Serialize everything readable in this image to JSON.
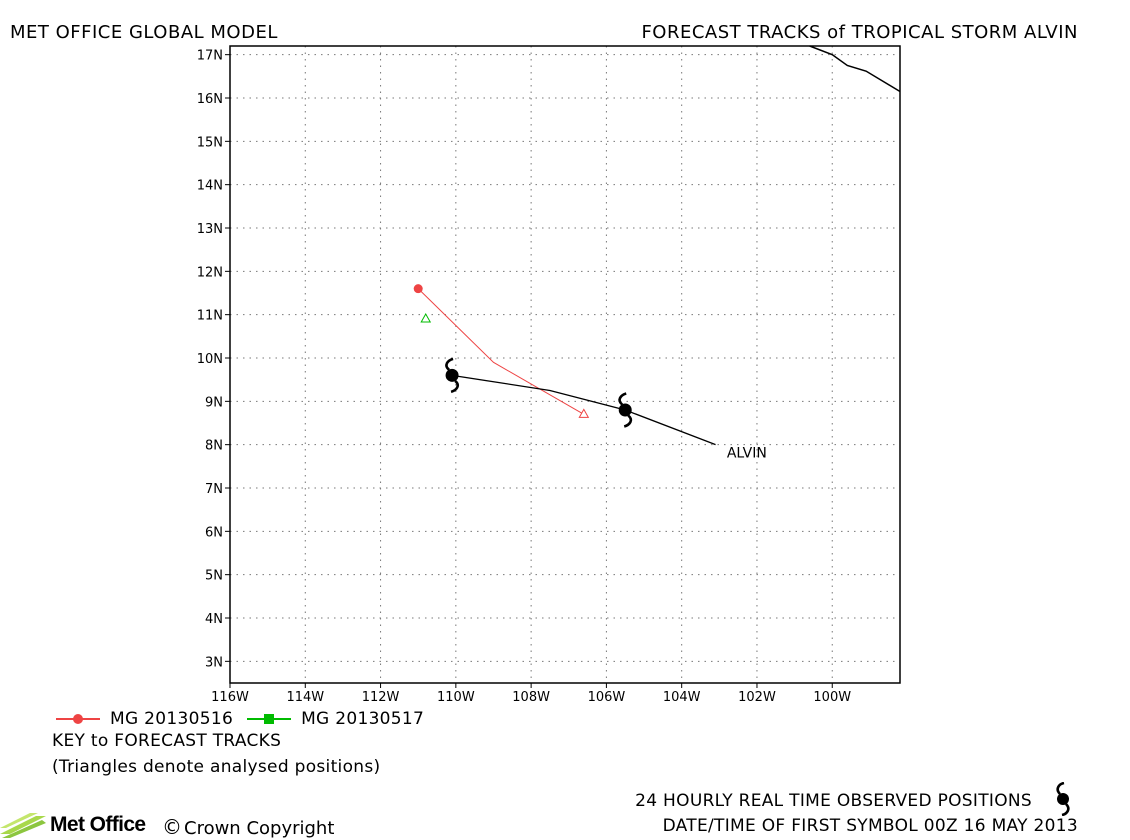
{
  "header": {
    "left_title": "MET OFFICE GLOBAL MODEL",
    "right_title": "FORECAST TRACKS of TROPICAL STORM ALVIN"
  },
  "map": {
    "lon_range": [
      -116,
      -98.2
    ],
    "lat_range": [
      2.5,
      17.2
    ],
    "x_ticks": [
      {
        "lon": -116,
        "label": "116W"
      },
      {
        "lon": -114,
        "label": "114W"
      },
      {
        "lon": -112,
        "label": "112W"
      },
      {
        "lon": -110,
        "label": "110W"
      },
      {
        "lon": -108,
        "label": "108W"
      },
      {
        "lon": -106,
        "label": "106W"
      },
      {
        "lon": -104,
        "label": "104W"
      },
      {
        "lon": -102,
        "label": "102W"
      },
      {
        "lon": -100,
        "label": "100W"
      }
    ],
    "y_ticks": [
      {
        "lat": 3,
        "label": "3N"
      },
      {
        "lat": 4,
        "label": "4N"
      },
      {
        "lat": 5,
        "label": "5N"
      },
      {
        "lat": 6,
        "label": "6N"
      },
      {
        "lat": 7,
        "label": "7N"
      },
      {
        "lat": 8,
        "label": "8N"
      },
      {
        "lat": 9,
        "label": "9N"
      },
      {
        "lat": 10,
        "label": "10N"
      },
      {
        "lat": 11,
        "label": "11N"
      },
      {
        "lat": 12,
        "label": "12N"
      },
      {
        "lat": 13,
        "label": "13N"
      },
      {
        "lat": 14,
        "label": "14N"
      },
      {
        "lat": 15,
        "label": "15N"
      },
      {
        "lat": 16,
        "label": "16N"
      },
      {
        "lat": 17,
        "label": "17N"
      }
    ],
    "grid": true,
    "coastline": [
      [
        -100.6,
        17.2
      ],
      [
        -100.0,
        17.0
      ],
      [
        -99.6,
        16.75
      ],
      [
        -99.1,
        16.62
      ],
      [
        -98.2,
        16.15
      ]
    ],
    "observed_track": {
      "label": "ALVIN",
      "color": "#000000",
      "points": [
        [
          -103.1,
          8.0
        ],
        [
          -105.5,
          8.8
        ],
        [
          -107.5,
          9.25
        ],
        [
          -110.1,
          9.6
        ]
      ],
      "storm_symbols": [
        [
          -110.1,
          9.6
        ],
        [
          -105.5,
          8.8
        ]
      ],
      "label_position": [
        -102.8,
        7.7
      ]
    },
    "forecast_tracks": [
      {
        "name": "MG 20130516",
        "color": "#ee4444",
        "points": [
          [
            -111.0,
            11.6
          ],
          [
            -109.0,
            9.9
          ],
          [
            -106.6,
            8.7
          ]
        ],
        "start_marker": "circle",
        "analysed_positions": [
          [
            -106.6,
            8.7
          ]
        ]
      },
      {
        "name": "MG 20130517",
        "color": "#00bb00",
        "points": [],
        "start_marker": "square",
        "analysed_positions": [
          [
            -110.8,
            10.9
          ]
        ]
      }
    ]
  },
  "key": {
    "title": "KEY to FORECAST TRACKS",
    "note": "(Triangles denote analysed positions)"
  },
  "footer": {
    "observed_note": "24 HOURLY REAL TIME OBSERVED POSITIONS",
    "first_symbol": "DATE/TIME OF FIRST SYMBOL 00Z 16 MAY 2013",
    "logo_text": "Met Office",
    "copyright_symbol": "©",
    "copyright": "Crown Copyright"
  }
}
